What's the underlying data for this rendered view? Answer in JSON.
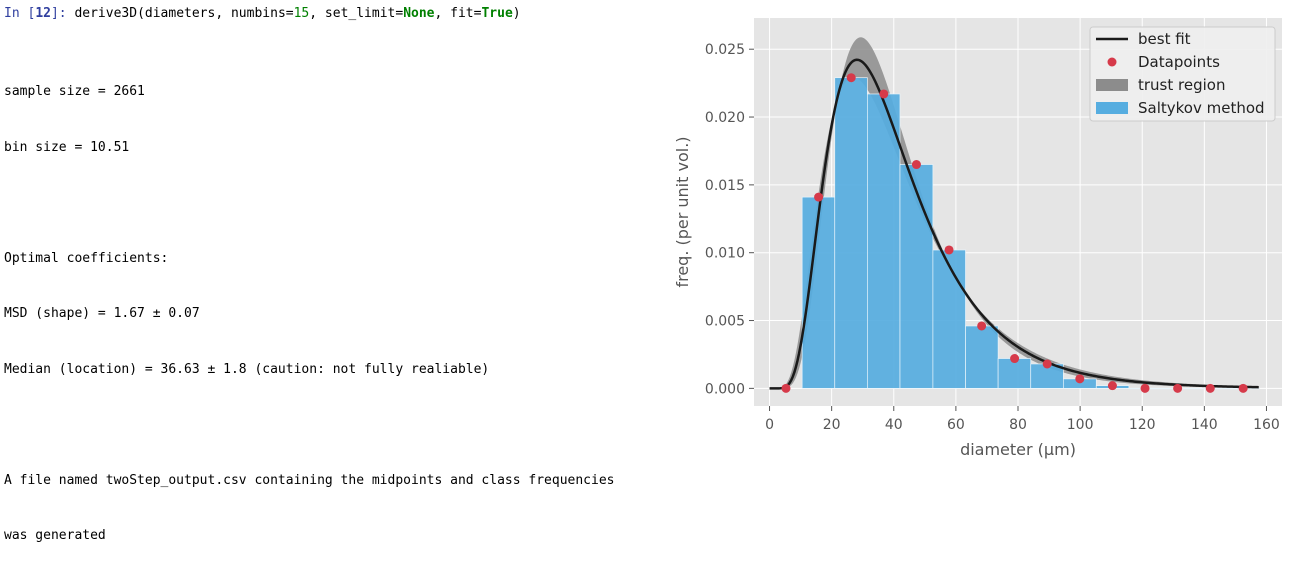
{
  "input_cell": {
    "prompt_prefix": "In [",
    "prompt_number": "12",
    "prompt_suffix": "]:",
    "code_func": " derive3D(diameters, numbins=",
    "code_numbins": "15",
    "code_mid": ", set_limit=",
    "code_none": "None",
    "code_mid2": ", fit=",
    "code_true": "True",
    "code_end": ")"
  },
  "output": {
    "sample_size": "sample size = 2661",
    "bin_size": "bin size = 10.51",
    "coeff_header": "Optimal coefficients:",
    "msd": "MSD (shape) = 1.67 ± 0.07",
    "median": "Median (location) = 36.63 ± 1.8 (caution: not fully realiable)",
    "file_line1": "A file named twoStep_output.csv containing the midpoints and class frequencies",
    "file_line2": "was generated"
  },
  "colors": {
    "plot_bg": "#e5e5e5",
    "bar": "#56ade0",
    "fit": "#1a1a1a",
    "trust": "#8c8c8c",
    "points": "#d63a4a"
  },
  "chart_data": {
    "type": "bar",
    "xlabel": "diameter (μm)",
    "ylabel": "freq. (per unit vol.)",
    "xlim": [
      -5,
      165
    ],
    "ylim": [
      -0.0013,
      0.0273
    ],
    "x_ticks": [
      0,
      20,
      40,
      60,
      80,
      100,
      120,
      140,
      160
    ],
    "y_ticks": [
      0.0,
      0.005,
      0.01,
      0.015,
      0.02,
      0.025
    ],
    "y_tick_labels": [
      "0.000",
      "0.005",
      "0.010",
      "0.015",
      "0.020",
      "0.025"
    ],
    "x_tick_labels": [
      "0",
      "20",
      "40",
      "60",
      "80",
      "100",
      "120",
      "140",
      "160"
    ],
    "grid": true,
    "legend_position": "top-right",
    "legend": [
      "best fit",
      "Datapoints",
      "trust region",
      "Saltykov method"
    ],
    "bins": {
      "edges": [
        10.5,
        21.0,
        31.5,
        42.0,
        52.6,
        63.1,
        73.6,
        84.1,
        94.6,
        105.2,
        115.7,
        126.2,
        136.7,
        147.2,
        157.7
      ],
      "values": [
        0.0141,
        0.0229,
        0.0217,
        0.0165,
        0.0102,
        0.0046,
        0.0022,
        0.0018,
        0.0007,
        0.0002,
        0.0,
        0.0,
        0.0,
        0.0
      ]
    },
    "datapoints": {
      "x": [
        5.3,
        15.8,
        26.3,
        36.8,
        47.3,
        57.8,
        68.3,
        78.9,
        89.4,
        99.9,
        110.4,
        120.9,
        131.4,
        141.9,
        152.5
      ],
      "y": [
        0.0,
        0.0141,
        0.0229,
        0.0217,
        0.0165,
        0.0102,
        0.0046,
        0.0022,
        0.0018,
        0.0007,
        0.0002,
        0.0,
        0.0,
        0.0,
        0.0
      ]
    },
    "best_fit": {
      "type": "lognormal",
      "msd": 1.67,
      "median": 36.63,
      "x_range": [
        0,
        157.7
      ]
    }
  }
}
